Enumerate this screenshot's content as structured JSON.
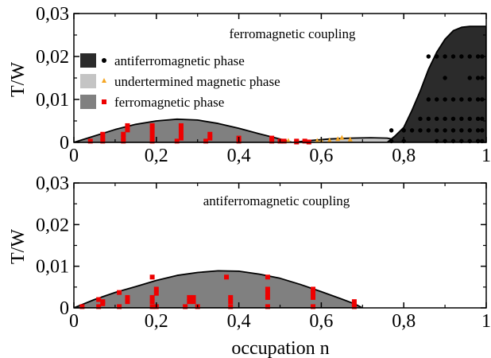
{
  "chart_data": {
    "type": "area",
    "xlabel": "occupation n",
    "ylabel": "T/W",
    "xlim": [
      0,
      1
    ],
    "ylim": [
      0,
      0.03
    ],
    "x_ticks": [
      0,
      0.2,
      0.4,
      0.6,
      0.8,
      1
    ],
    "x_tick_labels": [
      "0",
      "0,2",
      "0,4",
      "0,6",
      "0,8",
      "1"
    ],
    "y_ticks": [
      0,
      0.01,
      0.02,
      0.03
    ],
    "y_tick_labels": [
      "0",
      "0,01",
      "0,02",
      "0,03"
    ],
    "colors": {
      "antiferro_region": "#2b2b2b",
      "undetermined_region": "#c4c4c4",
      "ferro_region": "#808080",
      "ferro_marker": "#ee0000",
      "undetermined_marker": "#f5a623",
      "antiferro_marker": "#000000"
    },
    "panels": [
      {
        "title": "ferromagnetic coupling",
        "legend_position": "top-left",
        "legend": [
          {
            "label": "antiferromagnetic phase",
            "region": "antiferro",
            "marker": "circle"
          },
          {
            "label": "undertermined magnetic phase",
            "region": "undetermined",
            "marker": "triangle"
          },
          {
            "label": "ferromagnetic phase",
            "region": "ferro",
            "marker": "square"
          }
        ],
        "regions": [
          {
            "phase": "ferro",
            "boundary": [
              [
                0,
                0
              ],
              [
                0.05,
                0.0015
              ],
              [
                0.1,
                0.003
              ],
              [
                0.15,
                0.0042
              ],
              [
                0.2,
                0.005
              ],
              [
                0.25,
                0.0054
              ],
              [
                0.3,
                0.0052
              ],
              [
                0.35,
                0.0044
              ],
              [
                0.4,
                0.0033
              ],
              [
                0.45,
                0.002
              ],
              [
                0.5,
                0.0008
              ],
              [
                0.52,
                0.0002
              ],
              [
                0.53,
                0
              ]
            ]
          },
          {
            "phase": "undetermined",
            "boundary": [
              [
                0.53,
                0
              ],
              [
                0.57,
                0.0004
              ],
              [
                0.62,
                0.0008
              ],
              [
                0.67,
                0.001
              ],
              [
                0.72,
                0.0011
              ],
              [
                0.76,
                0.001
              ],
              [
                0.78,
                0.0006
              ],
              [
                0.8,
                0
              ]
            ]
          },
          {
            "phase": "antiferro",
            "boundary": [
              [
                0.76,
                0
              ],
              [
                0.78,
                0.0016
              ],
              [
                0.8,
                0.0035
              ],
              [
                0.82,
                0.0075
              ],
              [
                0.84,
                0.012
              ],
              [
                0.86,
                0.017
              ],
              [
                0.88,
                0.021
              ],
              [
                0.9,
                0.024
              ],
              [
                0.92,
                0.026
              ],
              [
                0.94,
                0.0268
              ],
              [
                0.96,
                0.027
              ],
              [
                0.99,
                0.027
              ],
              [
                1,
                0.027
              ],
              [
                1,
                0
              ]
            ]
          }
        ],
        "points": [
          {
            "phase": "ferro",
            "x": [
              0.04,
              0.07,
              0.07,
              0.07,
              0.12,
              0.12,
              0.12,
              0.13,
              0.13,
              0.19,
              0.19,
              0.19,
              0.19,
              0.19,
              0.25,
              0.26,
              0.26,
              0.26,
              0.26,
              0.32,
              0.33,
              0.33,
              0.4,
              0.4,
              0.48,
              0.48,
              0.5,
              0.51,
              0.54,
              0.54,
              0.56,
              0.57
            ],
            "y": [
              0.0003,
              0.0003,
              0.001,
              0.0019,
              0.0003,
              0.001,
              0.0019,
              0.0029,
              0.0039,
              0.0003,
              0.001,
              0.0019,
              0.0029,
              0.0039,
              0.0003,
              0.001,
              0.0019,
              0.0029,
              0.0039,
              0.0003,
              0.001,
              0.0019,
              0.0003,
              0.001,
              0.0003,
              0.001,
              0.0003,
              0.0003,
              0.0003,
              0.0001,
              0.0003,
              0.0001
            ]
          },
          {
            "phase": "undetermined",
            "x": [
              0.52,
              0.59,
              0.6,
              0.62,
              0.64,
              0.65,
              0.67
            ],
            "y": [
              0.0003,
              0.0003,
              0.0003,
              0.0004,
              0.0007,
              0.001,
              0.0006
            ]
          },
          {
            "phase": "antiferro",
            "x": [
              0.77,
              0.77,
              0.8,
              0.8,
              0.82,
              0.84,
              0.86,
              0.88,
              0.88,
              0.88,
              0.9,
              0.9,
              0.9,
              0.9,
              0.92,
              0.92,
              0.92,
              0.92,
              0.94,
              0.94,
              0.94,
              0.96,
              0.96,
              0.96,
              0.96,
              0.98,
              0.98,
              0.98,
              0.98,
              0.99,
              0.99,
              0.99,
              0.99,
              0.99,
              0.84,
              0.86,
              0.86,
              0.88,
              0.9,
              0.94,
              0.96,
              0.98,
              0.98,
              0.86,
              0.88,
              0.9,
              0.92,
              0.94,
              0.96,
              0.98,
              0.99
            ],
            "y": [
              0.0003,
              0.0028,
              0.0003,
              0.0028,
              0.0028,
              0.0028,
              0.0028,
              0.0003,
              0.0028,
              0.0055,
              0.0003,
              0.0028,
              0.0055,
              0.01,
              0.0003,
              0.0028,
              0.0055,
              0.01,
              0.0003,
              0.0028,
              0.0055,
              0.0003,
              0.0028,
              0.0055,
              0.01,
              0.0003,
              0.0028,
              0.0055,
              0.01,
              0.0003,
              0.0028,
              0.0055,
              0.01,
              0.015,
              0.0055,
              0.0055,
              0.01,
              0.01,
              0.015,
              0.01,
              0.015,
              0.015,
              0.02,
              0.02,
              0.02,
              0.02,
              0.02,
              0.02,
              0.02,
              0.0003,
              0.02
            ]
          }
        ]
      },
      {
        "title": "antiferromagnetic coupling",
        "regions": [
          {
            "phase": "ferro",
            "boundary": [
              [
                0,
                0
              ],
              [
                0.05,
                0.002
              ],
              [
                0.1,
                0.0037
              ],
              [
                0.15,
                0.0051
              ],
              [
                0.2,
                0.0066
              ],
              [
                0.25,
                0.0078
              ],
              [
                0.3,
                0.0085
              ],
              [
                0.35,
                0.0089
              ],
              [
                0.4,
                0.0088
              ],
              [
                0.45,
                0.0081
              ],
              [
                0.5,
                0.0071
              ],
              [
                0.55,
                0.0056
              ],
              [
                0.6,
                0.0039
              ],
              [
                0.65,
                0.0021
              ],
              [
                0.68,
                0.001
              ],
              [
                0.7,
                0
              ]
            ]
          }
        ],
        "points": [
          {
            "phase": "ferro",
            "x": [
              0.02,
              0.06,
              0.06,
              0.07,
              0.07,
              0.11,
              0.11,
              0.13,
              0.13,
              0.19,
              0.19,
              0.19,
              0.19,
              0.2,
              0.2,
              0.2,
              0.27,
              0.28,
              0.28,
              0.29,
              0.29,
              0.3,
              0.37,
              0.38,
              0.38,
              0.38,
              0.47,
              0.47,
              0.47,
              0.47,
              0.47,
              0.58,
              0.58,
              0.58,
              0.58,
              0.68,
              0.68,
              0.68
            ],
            "y": [
              0.0003,
              0.0003,
              0.002,
              0.001,
              0.0015,
              0.0003,
              0.0037,
              0.0015,
              0.0025,
              0.0003,
              0.0015,
              0.0025,
              0.0074,
              0.0035,
              0.0045,
              0.0003,
              0.0003,
              0.0015,
              0.0025,
              0.0015,
              0.0025,
              0.0003,
              0.0074,
              0.0003,
              0.0015,
              0.0025,
              0.0074,
              0.0045,
              0.0035,
              0.0025,
              0.0003,
              0.0045,
              0.0035,
              0.0025,
              0.0003,
              0.0015,
              0.0005,
              0.0003
            ]
          }
        ]
      }
    ]
  }
}
